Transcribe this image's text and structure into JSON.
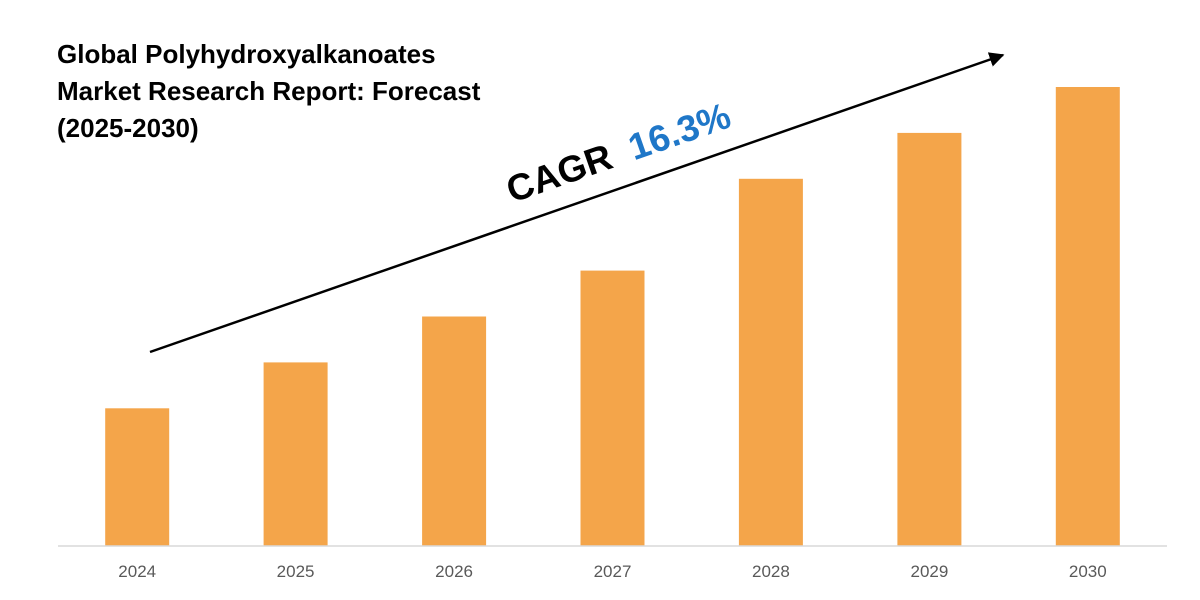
{
  "chart_data": {
    "type": "bar",
    "title_lines": [
      "Global Polyhydroxyalkanoates",
      "Market Research Report: Forecast",
      "(2025-2030)"
    ],
    "categories": [
      "2024",
      "2025",
      "2026",
      "2027",
      "2028",
      "2029",
      "2030"
    ],
    "values": [
      30,
      40,
      50,
      60,
      80,
      90,
      100
    ],
    "ylim": [
      0,
      100
    ],
    "annotation": {
      "prefix": "CAGR",
      "value": "16.3%"
    },
    "grid": false,
    "legend": "none"
  },
  "colors": {
    "bar": "#F4A54A",
    "axis": "#D9D9D9",
    "tick_label": "#595959",
    "annotation_prefix": "#000000",
    "annotation_value": "#1F77C8",
    "arrow": "#000000",
    "title": "#000000"
  }
}
